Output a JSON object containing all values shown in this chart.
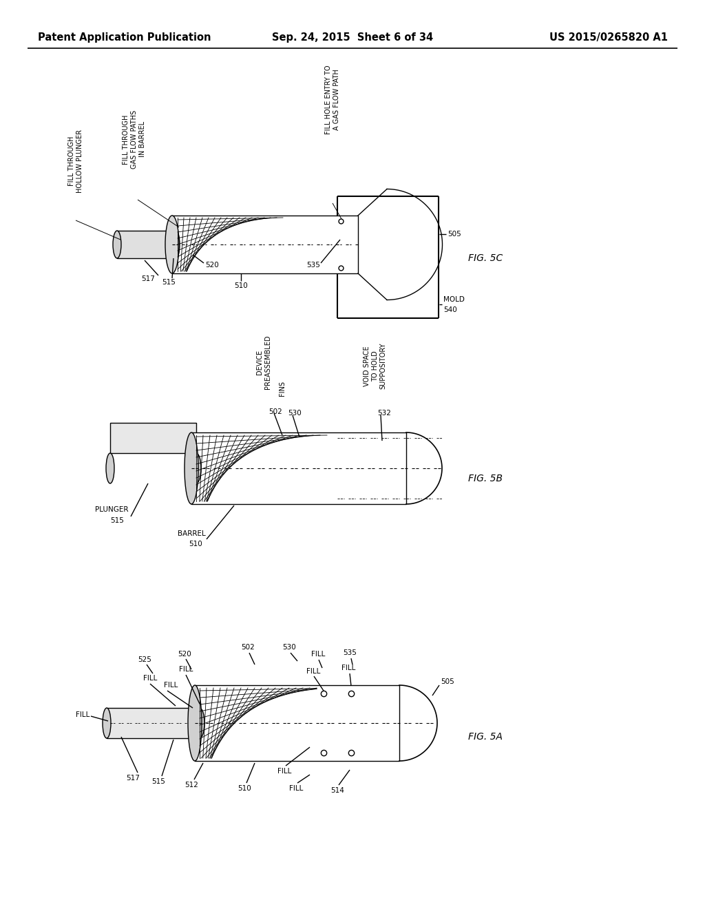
{
  "background_color": "#ffffff",
  "header": {
    "left": "Patent Application Publication",
    "center": "Sep. 24, 2015  Sheet 6 of 34",
    "right": "US 2015/0265820 A1",
    "font_size": 10.5
  }
}
